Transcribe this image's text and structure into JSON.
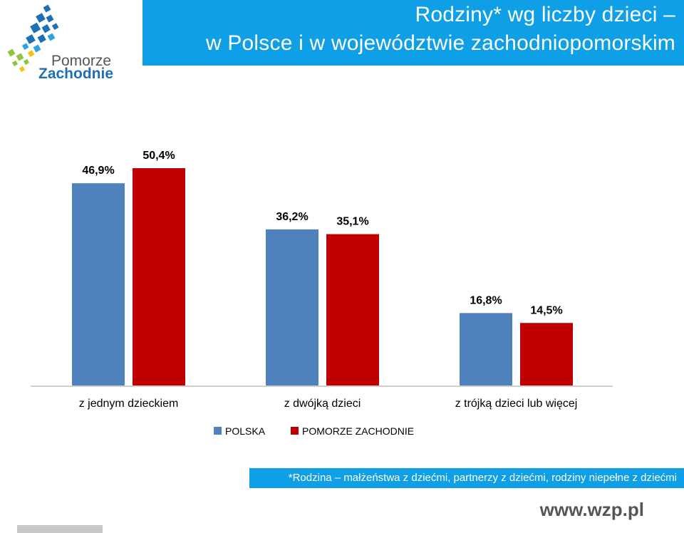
{
  "logo": {
    "line1": "Pomorze",
    "line2": "Zachodnie"
  },
  "title": {
    "line1": "Rodziny* wg liczby dzieci –",
    "line2": "w Polsce i w województwie zachodniopomorskim"
  },
  "chart_data": {
    "type": "bar",
    "categories": [
      "z jednym dzieckiem",
      "z dwójką dzieci",
      "z trójką dzieci lub więcej"
    ],
    "series": [
      {
        "name": "POLSKA",
        "values": [
          46.9,
          36.2,
          16.8
        ],
        "labels": [
          "46,9%",
          "36,2%",
          "16,8%"
        ],
        "color": "#4f81bd"
      },
      {
        "name": "POMORZE ZACHODNIE",
        "values": [
          50.4,
          35.1,
          14.5
        ],
        "labels": [
          "50,4%",
          "35,1%",
          "14,5%"
        ],
        "color": "#c00000"
      }
    ],
    "unit": "%",
    "ylim": [
      0,
      50.4
    ],
    "grid": false,
    "legend": "bottom"
  },
  "footnote": "*Rodzina – małżeństwa z dziećmi, partnerzy z dziećmi, rodziny niepełne z dziećmi",
  "website": "www.wzp.pl"
}
